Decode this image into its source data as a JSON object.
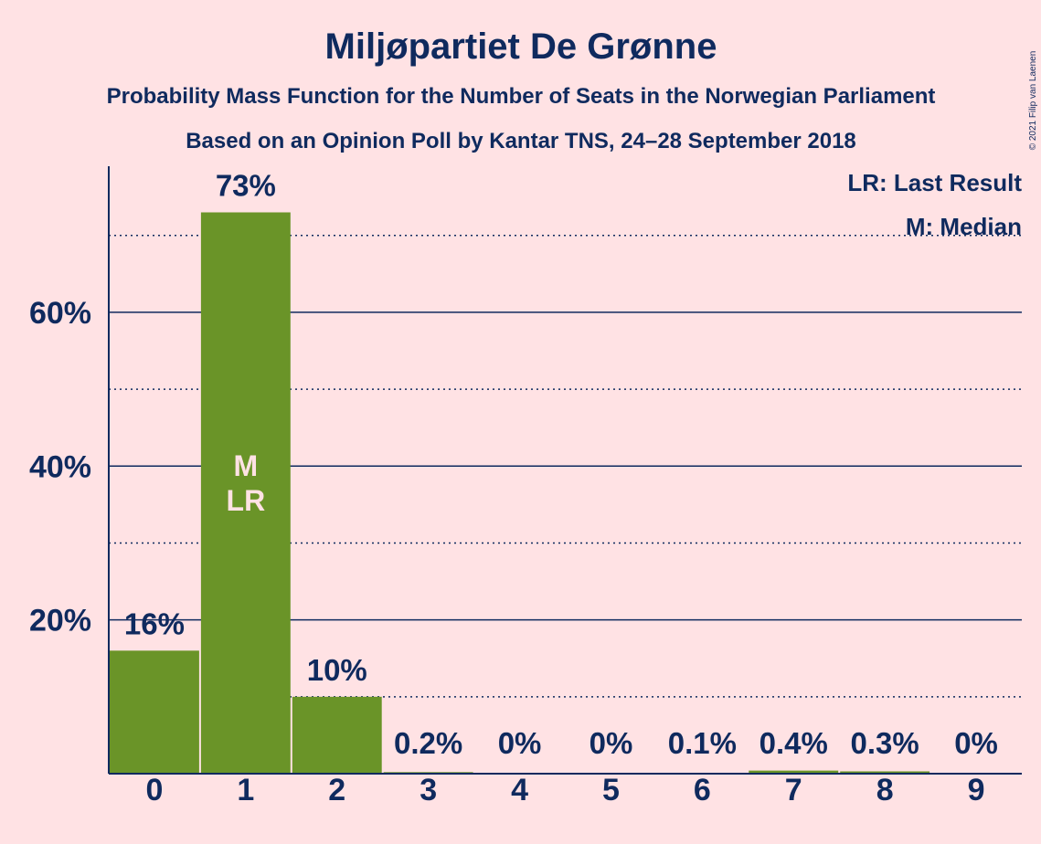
{
  "chart_data": {
    "type": "bar",
    "title": "Miljøpartiet De Grønne",
    "subtitle": "Probability Mass Function for the Number of Seats in the Norwegian Parliament",
    "subtitle2": "Based on an Opinion Poll by Kantar TNS, 24–28 September 2018",
    "copyright": "© 2021 Filip van Laenen",
    "categories": [
      "0",
      "1",
      "2",
      "3",
      "4",
      "5",
      "6",
      "7",
      "8",
      "9"
    ],
    "values": [
      16,
      73,
      10,
      0.2,
      0,
      0,
      0.1,
      0.4,
      0.3,
      0
    ],
    "value_labels": [
      "16%",
      "73%",
      "10%",
      "0.2%",
      "0%",
      "0%",
      "0.1%",
      "0.4%",
      "0.3%",
      "0%"
    ],
    "ylim": [
      0,
      79
    ],
    "y_ticks": [
      20,
      40,
      60
    ],
    "y_tick_labels": [
      "20%",
      "40%",
      "60%"
    ],
    "y_dotted_lines": [
      10,
      30,
      50,
      70
    ],
    "median_index": 1,
    "last_result_index": 1,
    "median_marker": "M",
    "last_result_marker": "LR",
    "legend": [
      "LR: Last Result",
      "M: Median"
    ],
    "legend_position": "top-right",
    "grid": true,
    "bar_color": "#6A9428",
    "axis_color": "#0F2A5E",
    "background": "#FFE2E4"
  }
}
